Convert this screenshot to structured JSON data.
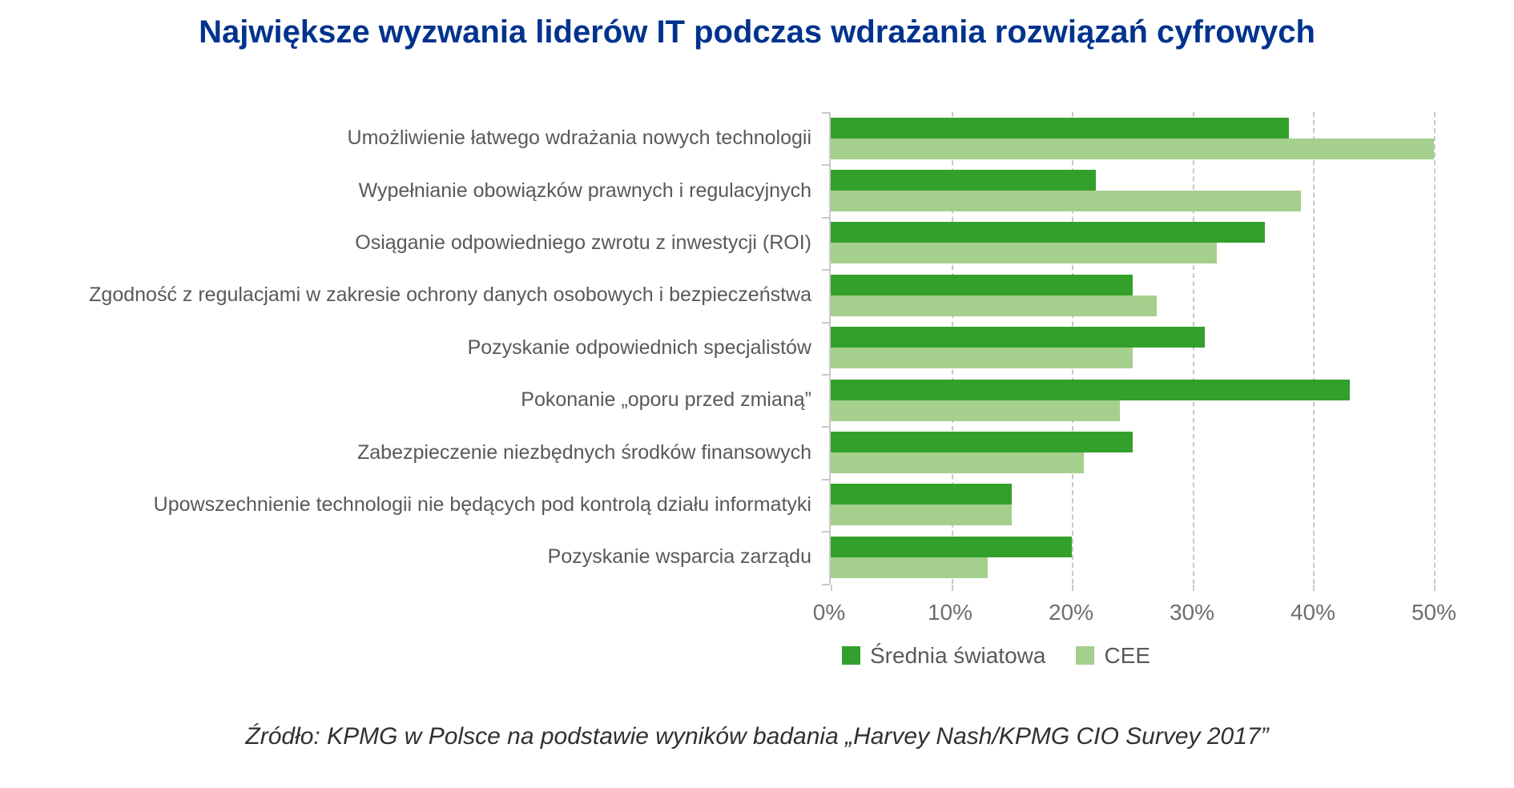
{
  "title": "Największe wyzwania liderów IT podczas wdrażania rozwiązań cyfrowych",
  "source": "Źródło: KPMG w Polsce na podstawie wyników badania „Harvey Nash/KPMG CIO Survey 2017”",
  "colors": {
    "title_blue": "#00338D",
    "world_green": "#34A02C",
    "cee_green": "#A5CF8D",
    "label_gray": "#595959",
    "gridline_gray": "#C6C6C6"
  },
  "chart_data": {
    "type": "bar",
    "orientation": "horizontal",
    "title": "Największe wyzwania liderów IT podczas wdrażania rozwiązań cyfrowych",
    "categories": [
      "Umożliwienie łatwego wdrażania nowych technologii",
      "Wypełnianie obowiązków prawnych i regulacyjnych",
      "Osiąganie odpowiedniego zwrotu z inwestycji (ROI)",
      "Zgodność z regulacjami w zakresie ochrony danych osobowych i bezpieczeństwa",
      "Pozyskanie odpowiednich specjalistów",
      "Pokonanie „oporu przed zmianą”",
      "Zabezpieczenie niezbędnych środków finansowych",
      "Upowszechnienie technologii nie będących pod kontrolą działu informatyki",
      "Pozyskanie wsparcia zarządu"
    ],
    "series": [
      {
        "name": "Średnia światowa",
        "color": "#34A02C",
        "values": [
          38,
          22,
          36,
          25,
          31,
          43,
          25,
          15,
          20
        ]
      },
      {
        "name": "CEE",
        "color": "#A5CF8D",
        "values": [
          50,
          39,
          32,
          27,
          25,
          24,
          21,
          15,
          13
        ]
      }
    ],
    "xlim": [
      0,
      50
    ],
    "x_ticks": [
      "0%",
      "10%",
      "20%",
      "30%",
      "40%",
      "50%"
    ],
    "grid": "vertical-dashed",
    "legend_position": "bottom",
    "unit": "%"
  }
}
